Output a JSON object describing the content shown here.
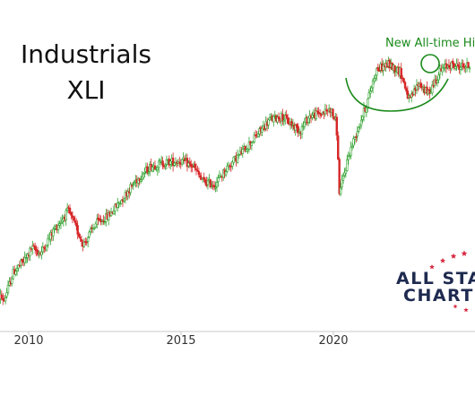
{
  "chart_data": {
    "type": "candlestick",
    "title": "Industrials",
    "subtitle": "XLI",
    "x_tick_labels": [
      "2010",
      "2015",
      "2020"
    ],
    "x_range": [
      2008.9,
      2024.5
    ],
    "y_range": [
      0,
      120
    ],
    "annotation": "New All-time Hi",
    "series": [
      {
        "date": 2008.9,
        "value": 9
      },
      {
        "date": 2009.2,
        "value": 5
      },
      {
        "date": 2009.5,
        "value": 20
      },
      {
        "date": 2009.9,
        "value": 27
      },
      {
        "date": 2010.1,
        "value": 33
      },
      {
        "date": 2010.4,
        "value": 30
      },
      {
        "date": 2010.8,
        "value": 42
      },
      {
        "date": 2011.3,
        "value": 53
      },
      {
        "date": 2011.6,
        "value": 42
      },
      {
        "date": 2011.8,
        "value": 35
      },
      {
        "date": 2012.2,
        "value": 46
      },
      {
        "date": 2012.6,
        "value": 50
      },
      {
        "date": 2013.0,
        "value": 58
      },
      {
        "date": 2013.5,
        "value": 69
      },
      {
        "date": 2014.0,
        "value": 77
      },
      {
        "date": 2014.5,
        "value": 79
      },
      {
        "date": 2015.0,
        "value": 80
      },
      {
        "date": 2015.4,
        "value": 77
      },
      {
        "date": 2015.7,
        "value": 69
      },
      {
        "date": 2016.1,
        "value": 67
      },
      {
        "date": 2016.5,
        "value": 76
      },
      {
        "date": 2016.9,
        "value": 83
      },
      {
        "date": 2017.4,
        "value": 92
      },
      {
        "date": 2017.9,
        "value": 102
      },
      {
        "date": 2018.3,
        "value": 104
      },
      {
        "date": 2018.9,
        "value": 96
      },
      {
        "date": 2019.2,
        "value": 104
      },
      {
        "date": 2019.7,
        "value": 106
      },
      {
        "date": 2019.9,
        "value": 108
      },
      {
        "date": 2020.1,
        "value": 100
      },
      {
        "date": 2020.2,
        "value": 62
      },
      {
        "date": 2020.5,
        "value": 83
      },
      {
        "date": 2020.9,
        "value": 102
      },
      {
        "date": 2021.1,
        "value": 111
      },
      {
        "date": 2021.4,
        "value": 129
      },
      {
        "date": 2021.8,
        "value": 132
      },
      {
        "date": 2022.2,
        "value": 128
      },
      {
        "date": 2022.5,
        "value": 112
      },
      {
        "date": 2022.8,
        "value": 122
      },
      {
        "date": 2023.1,
        "value": 116
      },
      {
        "date": 2023.5,
        "value": 128
      },
      {
        "date": 2023.8,
        "value": 132
      },
      {
        "date": 2024.0,
        "value": 131
      }
    ],
    "colors": {
      "up": "#2ca02c",
      "down": "#d62728",
      "annotation": "#1a8a1a",
      "axis": "#c8c8c8"
    }
  },
  "logo": {
    "line1": "ALL STA",
    "line2": "CHARTS",
    "star_color": "#d62740",
    "text_color": "#1e2a4f"
  }
}
